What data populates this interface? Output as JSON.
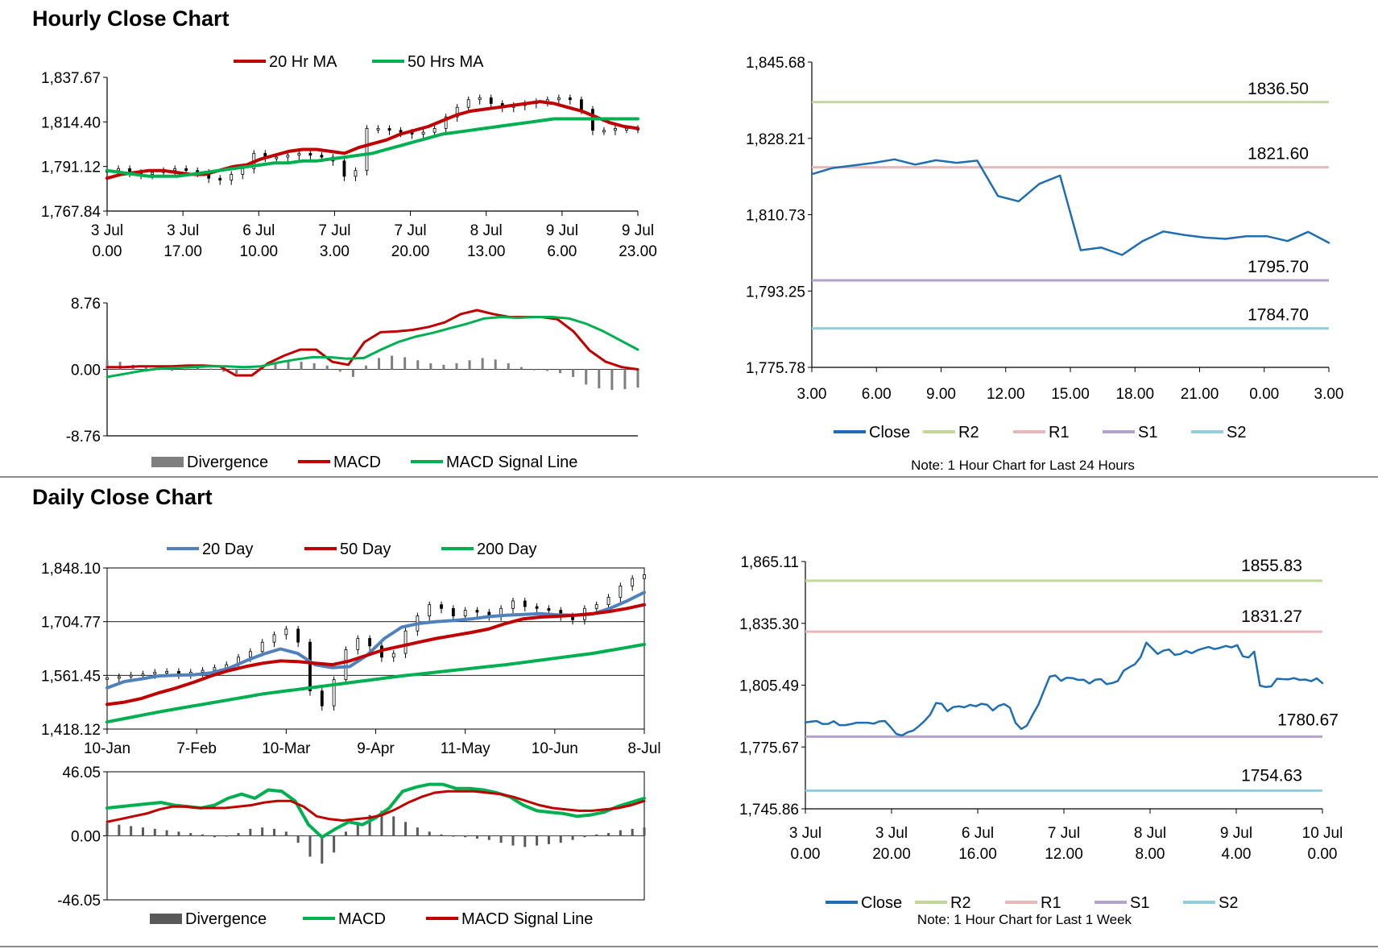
{
  "sections": {
    "hourly_title": "Hourly Close Chart",
    "daily_title": "Daily Close Chart"
  },
  "chart_data": [
    {
      "id": "hourly-price",
      "type": "candlestick",
      "ylim": [
        1767.84,
        1837.67
      ],
      "y_ticks": [
        "1,837.67",
        "1,814.40",
        "1,791.12",
        "1,767.84"
      ],
      "x_ticks": [
        [
          "3 Jul",
          "0.00"
        ],
        [
          "3 Jul",
          "17.00"
        ],
        [
          "6 Jul",
          "10.00"
        ],
        [
          "7 Jul",
          "3.00"
        ],
        [
          "7 Jul",
          "20.00"
        ],
        [
          "8 Jul",
          "13.00"
        ],
        [
          "9 Jul",
          "6.00"
        ],
        [
          "9 Jul",
          "23.00"
        ]
      ],
      "series": [
        {
          "name": "20 Hr MA",
          "color": "#c00000",
          "values": [
            1785,
            1787,
            1788,
            1789,
            1789,
            1788,
            1787,
            1787,
            1789,
            1791,
            1792,
            1795,
            1797,
            1799,
            1800,
            1800,
            1799,
            1798,
            1801,
            1803,
            1805,
            1808,
            1810,
            1812,
            1815,
            1818,
            1820,
            1821,
            1822,
            1823,
            1824,
            1825,
            1824,
            1822,
            1820,
            1817,
            1814,
            1812,
            1811
          ]
        },
        {
          "name": "50 Hrs MA",
          "color": "#00b050",
          "values": [
            1789,
            1788,
            1787,
            1786,
            1786,
            1786,
            1787,
            1788,
            1789,
            1790,
            1791,
            1792,
            1793,
            1793,
            1794,
            1794,
            1795,
            1796,
            1797,
            1798,
            1800,
            1802,
            1804,
            1806,
            1808,
            1809,
            1810,
            1811,
            1812,
            1813,
            1814,
            1815,
            1816,
            1816,
            1816,
            1816,
            1816,
            1816,
            1816
          ]
        }
      ],
      "candles": [
        1789,
        1790,
        1788,
        1787,
        1788,
        1789,
        1790,
        1789,
        1788,
        1785,
        1784,
        1787,
        1790,
        1798,
        1796,
        1796,
        1797,
        1798,
        1797,
        1796,
        1794,
        1786,
        1789,
        1811,
        1811,
        1810,
        1809,
        1808,
        1809,
        1811,
        1817,
        1822,
        1826,
        1827,
        1824,
        1822,
        1823,
        1824,
        1825,
        1826,
        1827,
        1826,
        1821,
        1810,
        1810,
        1811,
        1811,
        1811
      ]
    },
    {
      "id": "hourly-macd",
      "type": "line",
      "ylim": [
        -8.76,
        8.76
      ],
      "y_ticks": [
        "8.76",
        "0.00",
        "-8.76"
      ],
      "series": [
        {
          "name": "Divergence",
          "color": "#7f7f7f",
          "values": [
            1.2,
            1.0,
            0.6,
            0.3,
            0.0,
            -0.2,
            0.0,
            0.3,
            0.1,
            -0.3,
            -0.6,
            0.1,
            0.6,
            0.9,
            1.0,
            1.0,
            0.8,
            0.5,
            -0.3,
            -1.0,
            0.5,
            1.5,
            1.8,
            1.6,
            1.2,
            0.8,
            0.6,
            0.8,
            1.2,
            1.5,
            1.3,
            0.8,
            0.3,
            0.0,
            -0.2,
            -0.5,
            -1.0,
            -2.0,
            -2.5,
            -2.7,
            -2.6,
            -2.4
          ]
        },
        {
          "name": "MACD",
          "color": "#c00000",
          "values": [
            0.3,
            0.3,
            0.4,
            0.4,
            0.4,
            0.5,
            0.5,
            0.4,
            -0.8,
            -0.8,
            0.8,
            1.8,
            2.6,
            2.6,
            1.0,
            0.6,
            3.6,
            4.9,
            5.0,
            5.2,
            5.6,
            6.2,
            7.3,
            7.8,
            7.3,
            6.9,
            6.9,
            6.9,
            6.6,
            5.0,
            2.5,
            1.0,
            0.3,
            0.0
          ]
        },
        {
          "name": "MACD Signal Line",
          "color": "#00b050",
          "values": [
            -1.0,
            -0.6,
            -0.2,
            0.1,
            0.2,
            0.3,
            0.4,
            0.4,
            0.3,
            0.4,
            0.9,
            1.3,
            1.6,
            1.6,
            1.4,
            1.5,
            2.6,
            3.6,
            4.3,
            4.8,
            5.4,
            6.0,
            6.7,
            6.9,
            6.8,
            6.9,
            6.9,
            6.7,
            6.0,
            5.0,
            3.8,
            2.6
          ]
        }
      ]
    },
    {
      "id": "hourly-levels",
      "type": "line",
      "ylim": [
        1775.78,
        1845.68
      ],
      "y_ticks": [
        "1,845.68",
        "1,828.21",
        "1,810.73",
        "1,793.25",
        "1,775.78"
      ],
      "x_ticks": [
        "3.00",
        "6.00",
        "9.00",
        "12.00",
        "15.00",
        "18.00",
        "21.00",
        "0.00",
        "3.00"
      ],
      "series": [
        {
          "name": "Close",
          "color": "#1f6eb4",
          "values": [
            1820.0,
            1821.4,
            1822.0,
            1822.6,
            1823.4,
            1822.2,
            1823.2,
            1822.6,
            1823.1,
            1815.0,
            1813.8,
            1817.8,
            1819.7,
            1802.6,
            1803.2,
            1801.5,
            1804.7,
            1806.9,
            1806.1,
            1805.5,
            1805.2,
            1805.8,
            1805.8,
            1804.7,
            1806.8,
            1804.3
          ]
        }
      ],
      "levels": [
        {
          "name": "R2",
          "value": 1836.5,
          "label": "1836.50",
          "color": "#c4d79b"
        },
        {
          "name": "R1",
          "value": 1821.6,
          "label": "1821.60",
          "color": "#e6b9b8"
        },
        {
          "name": "S1",
          "value": 1795.7,
          "label": "1795.70",
          "color": "#b3a2c7"
        },
        {
          "name": "S2",
          "value": 1784.7,
          "label": "1784.70",
          "color": "#92cddc"
        }
      ],
      "note": "Note: 1 Hour Chart for Last 24 Hours"
    },
    {
      "id": "daily-price",
      "type": "candlestick",
      "ylim": [
        1418.12,
        1848.1
      ],
      "y_ticks": [
        "1,848.10",
        "1,704.77",
        "1,561.45",
        "1,418.12"
      ],
      "x_ticks": [
        "10-Jan",
        "7-Feb",
        "10-Mar",
        "9-Apr",
        "11-May",
        "10-Jun",
        "8-Jul"
      ],
      "series": [
        {
          "name": "20 Day",
          "color": "#4f81bd",
          "values": [
            1528,
            1545,
            1552,
            1560,
            1562,
            1563,
            1568,
            1580,
            1600,
            1618,
            1632,
            1620,
            1590,
            1582,
            1585,
            1615,
            1660,
            1690,
            1700,
            1705,
            1708,
            1712,
            1718,
            1722,
            1724,
            1726,
            1723,
            1722,
            1725,
            1740,
            1760,
            1783
          ]
        },
        {
          "name": "50 Day",
          "color": "#c00000",
          "values": [
            1484,
            1490,
            1500,
            1515,
            1528,
            1543,
            1560,
            1574,
            1585,
            1594,
            1600,
            1598,
            1594,
            1590,
            1600,
            1615,
            1630,
            1640,
            1650,
            1660,
            1668,
            1676,
            1685,
            1700,
            1712,
            1717,
            1719,
            1722,
            1726,
            1732,
            1740,
            1750
          ]
        },
        {
          "name": "200 Day",
          "color": "#00b050",
          "values": [
            1437,
            1446,
            1455,
            1464,
            1472,
            1480,
            1488,
            1496,
            1504,
            1512,
            1518,
            1524,
            1530,
            1536,
            1542,
            1548,
            1554,
            1560,
            1565,
            1570,
            1575,
            1580,
            1585,
            1590,
            1596,
            1602,
            1608,
            1614,
            1620,
            1628,
            1636,
            1644
          ]
        }
      ],
      "candles": [
        1555,
        1558,
        1562,
        1565,
        1570,
        1572,
        1565,
        1570,
        1575,
        1582,
        1590,
        1610,
        1625,
        1650,
        1670,
        1685,
        1650,
        1520,
        1480,
        1550,
        1630,
        1660,
        1640,
        1610,
        1620,
        1680,
        1720,
        1750,
        1740,
        1720,
        1735,
        1730,
        1720,
        1740,
        1760,
        1745,
        1740,
        1735,
        1720,
        1710,
        1740,
        1750,
        1770,
        1800,
        1820,
        1830
      ]
    },
    {
      "id": "daily-macd",
      "type": "line",
      "ylim": [
        -46.05,
        46.05
      ],
      "y_ticks": [
        "46.05",
        "0.00",
        "-46.05"
      ],
      "series": [
        {
          "name": "Divergence",
          "color": "#595959",
          "values": [
            9,
            8,
            7,
            6,
            5,
            4,
            3,
            2,
            1,
            -1,
            0,
            2,
            5,
            6,
            5,
            3,
            -5,
            -15,
            -20,
            -12,
            3,
            10,
            15,
            18,
            14,
            10,
            6,
            3,
            1,
            0,
            -1,
            -2,
            -3,
            -5,
            -7,
            -8,
            -7,
            -6,
            -5,
            -3,
            -1,
            1,
            2,
            4,
            5,
            6
          ]
        },
        {
          "name": "MACD",
          "color": "#00b050",
          "values": [
            20,
            21,
            22,
            23,
            24,
            22,
            21,
            20,
            22,
            27,
            30,
            27,
            33,
            32,
            25,
            8,
            -1,
            5,
            10,
            8,
            13,
            20,
            32,
            35,
            37,
            37,
            34,
            34,
            33,
            31,
            28,
            22,
            18,
            17,
            16,
            14,
            15,
            17,
            21,
            24,
            27
          ]
        },
        {
          "name": "MACD Signal Line",
          "color": "#c00000",
          "values": [
            10,
            12,
            14,
            16,
            19,
            21,
            21,
            20,
            20,
            20,
            21,
            22,
            24,
            25,
            25,
            21,
            14,
            12,
            11,
            12,
            13,
            15,
            19,
            24,
            28,
            31,
            32,
            32,
            32,
            31,
            30,
            28,
            25,
            22,
            20,
            19,
            18,
            18,
            19,
            20,
            22,
            25
          ]
        }
      ]
    },
    {
      "id": "daily-levels",
      "type": "line",
      "ylim": [
        1745.86,
        1865.11
      ],
      "y_ticks": [
        "1,865.11",
        "1,835.30",
        "1,805.49",
        "1,775.67",
        "1,745.86"
      ],
      "x_ticks": [
        [
          "3 Jul",
          "0.00"
        ],
        [
          "3 Jul",
          "20.00"
        ],
        [
          "6 Jul",
          "16.00"
        ],
        [
          "7 Jul",
          "12.00"
        ],
        [
          "8 Jul",
          "8.00"
        ],
        [
          "9 Jul",
          "4.00"
        ],
        [
          "10 Jul",
          "0.00"
        ]
      ],
      "series": [
        {
          "name": "Close",
          "color": "#1f6eb4",
          "values": [
            1787.5,
            1787.9,
            1788.2,
            1786.8,
            1786.8,
            1788.1,
            1786.2,
            1786.2,
            1786.7,
            1787.4,
            1787.4,
            1787.4,
            1786.9,
            1788.0,
            1788.2,
            1785.3,
            1782.0,
            1781.2,
            1782.8,
            1783.6,
            1785.8,
            1788.3,
            1791.4,
            1796.9,
            1796.5,
            1792.9,
            1794.9,
            1795.3,
            1794.8,
            1796.0,
            1795.3,
            1796.5,
            1796.0,
            1793.3,
            1795.5,
            1796.4,
            1794.6,
            1787.3,
            1784.4,
            1786.0,
            1791.2,
            1796.1,
            1802.9,
            1809.6,
            1810.2,
            1807.6,
            1809.1,
            1808.9,
            1808.0,
            1808.1,
            1806.3,
            1808.1,
            1808.4,
            1806.0,
            1806.5,
            1807.5,
            1812.4,
            1814.1,
            1815.6,
            1819.0,
            1826.0,
            1823.3,
            1820.5,
            1822.1,
            1822.7,
            1820.1,
            1820.5,
            1822.0,
            1820.9,
            1822.3,
            1823.2,
            1823.9,
            1822.9,
            1823.5,
            1824.4,
            1823.7,
            1824.8,
            1819.4,
            1818.8,
            1821.7,
            1805.3,
            1804.6,
            1804.9,
            1808.6,
            1808.4,
            1808.3,
            1808.9,
            1808.0,
            1808.2,
            1807.4,
            1808.8,
            1806.5
          ]
        }
      ],
      "levels": [
        {
          "name": "R2",
          "value": 1855.83,
          "label": "1855.83",
          "color": "#c4d79b"
        },
        {
          "name": "R1",
          "value": 1831.27,
          "label": "1831.27",
          "color": "#e6b9b8"
        },
        {
          "name": "S1",
          "value": 1780.67,
          "label": "1780.67",
          "color": "#b3a2c7"
        },
        {
          "name": "S2",
          "value": 1754.63,
          "label": "1754.63",
          "color": "#92cddc"
        }
      ],
      "note": "Note: 1 Hour Chart for Last 1 Week"
    }
  ],
  "legends": {
    "hourly_price": [
      {
        "label": "20 Hr MA",
        "color": "#c00000"
      },
      {
        "label": "50 Hrs MA",
        "color": "#00b050"
      }
    ],
    "hourly_macd": [
      {
        "label": "Divergence",
        "color": "#7f7f7f",
        "box": true
      },
      {
        "label": "MACD",
        "color": "#c00000"
      },
      {
        "label": "MACD Signal Line",
        "color": "#00b050"
      }
    ],
    "hourly_levels": [
      {
        "label": "Close",
        "color": "#1f6eb4"
      },
      {
        "label": "R2",
        "color": "#c4d79b"
      },
      {
        "label": "R1",
        "color": "#e6b9b8"
      },
      {
        "label": "S1",
        "color": "#b3a2c7"
      },
      {
        "label": "S2",
        "color": "#92cddc"
      }
    ],
    "daily_price": [
      {
        "label": "20 Day",
        "color": "#4f81bd"
      },
      {
        "label": "50 Day",
        "color": "#c00000"
      },
      {
        "label": "200 Day",
        "color": "#00b050"
      }
    ],
    "daily_macd": [
      {
        "label": "Divergence",
        "color": "#595959",
        "box": true
      },
      {
        "label": "MACD",
        "color": "#00b050"
      },
      {
        "label": "MACD Signal Line",
        "color": "#c00000"
      }
    ],
    "daily_levels": [
      {
        "label": "Close",
        "color": "#1f6eb4"
      },
      {
        "label": "R2",
        "color": "#c4d79b"
      },
      {
        "label": "R1",
        "color": "#e6b9b8"
      },
      {
        "label": "S1",
        "color": "#b3a2c7"
      },
      {
        "label": "S2",
        "color": "#92cddc"
      }
    ]
  }
}
